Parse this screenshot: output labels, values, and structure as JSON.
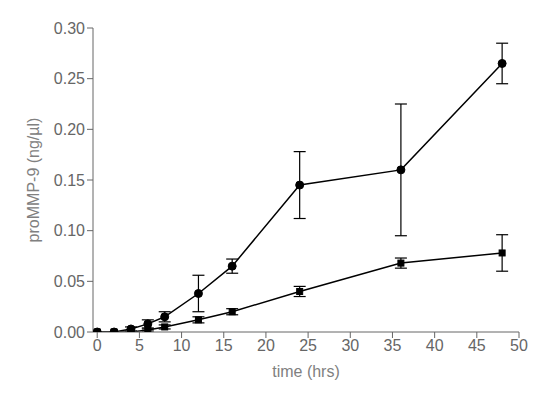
{
  "chart_data": {
    "type": "line",
    "x": [
      0,
      2,
      4,
      6,
      8,
      12,
      16,
      24,
      36,
      48
    ],
    "series": [
      {
        "color": "#000000",
        "marker": "circle",
        "line_style": "solid",
        "values": [
          0.0,
          0.0,
          0.003,
          0.008,
          0.015,
          0.038,
          0.065,
          0.145,
          0.16,
          0.265
        ],
        "errors": [
          0.0,
          0.0,
          0.002,
          0.004,
          0.005,
          0.018,
          0.007,
          0.033,
          0.065,
          0.02
        ]
      },
      {
        "color": "#000000",
        "marker": "square",
        "line_style": "solid",
        "values": [
          0.0,
          0.0,
          0.0,
          0.002,
          0.005,
          0.012,
          0.02,
          0.04,
          0.068,
          0.078
        ],
        "errors": [
          0.0,
          0.0,
          0.0,
          0.001,
          0.002,
          0.003,
          0.003,
          0.005,
          0.005,
          0.018
        ]
      }
    ],
    "xlabel": "time (hrs)",
    "ylabel": "proMMP-9 (ng/µl)",
    "xlim": [
      -0.5,
      50
    ],
    "ylim": [
      0,
      0.3
    ],
    "xticks": [
      0,
      5,
      10,
      15,
      20,
      25,
      30,
      35,
      40,
      45,
      50
    ],
    "yticks": [
      {
        "value": 0.0,
        "label": "0.00"
      },
      0.05,
      {
        "value": 0.1,
        "label": "0.10"
      },
      0.15,
      {
        "value": 0.2,
        "label": "0.20"
      },
      0.25,
      {
        "value": 0.3,
        "label": "0.30"
      }
    ],
    "grid": false
  }
}
